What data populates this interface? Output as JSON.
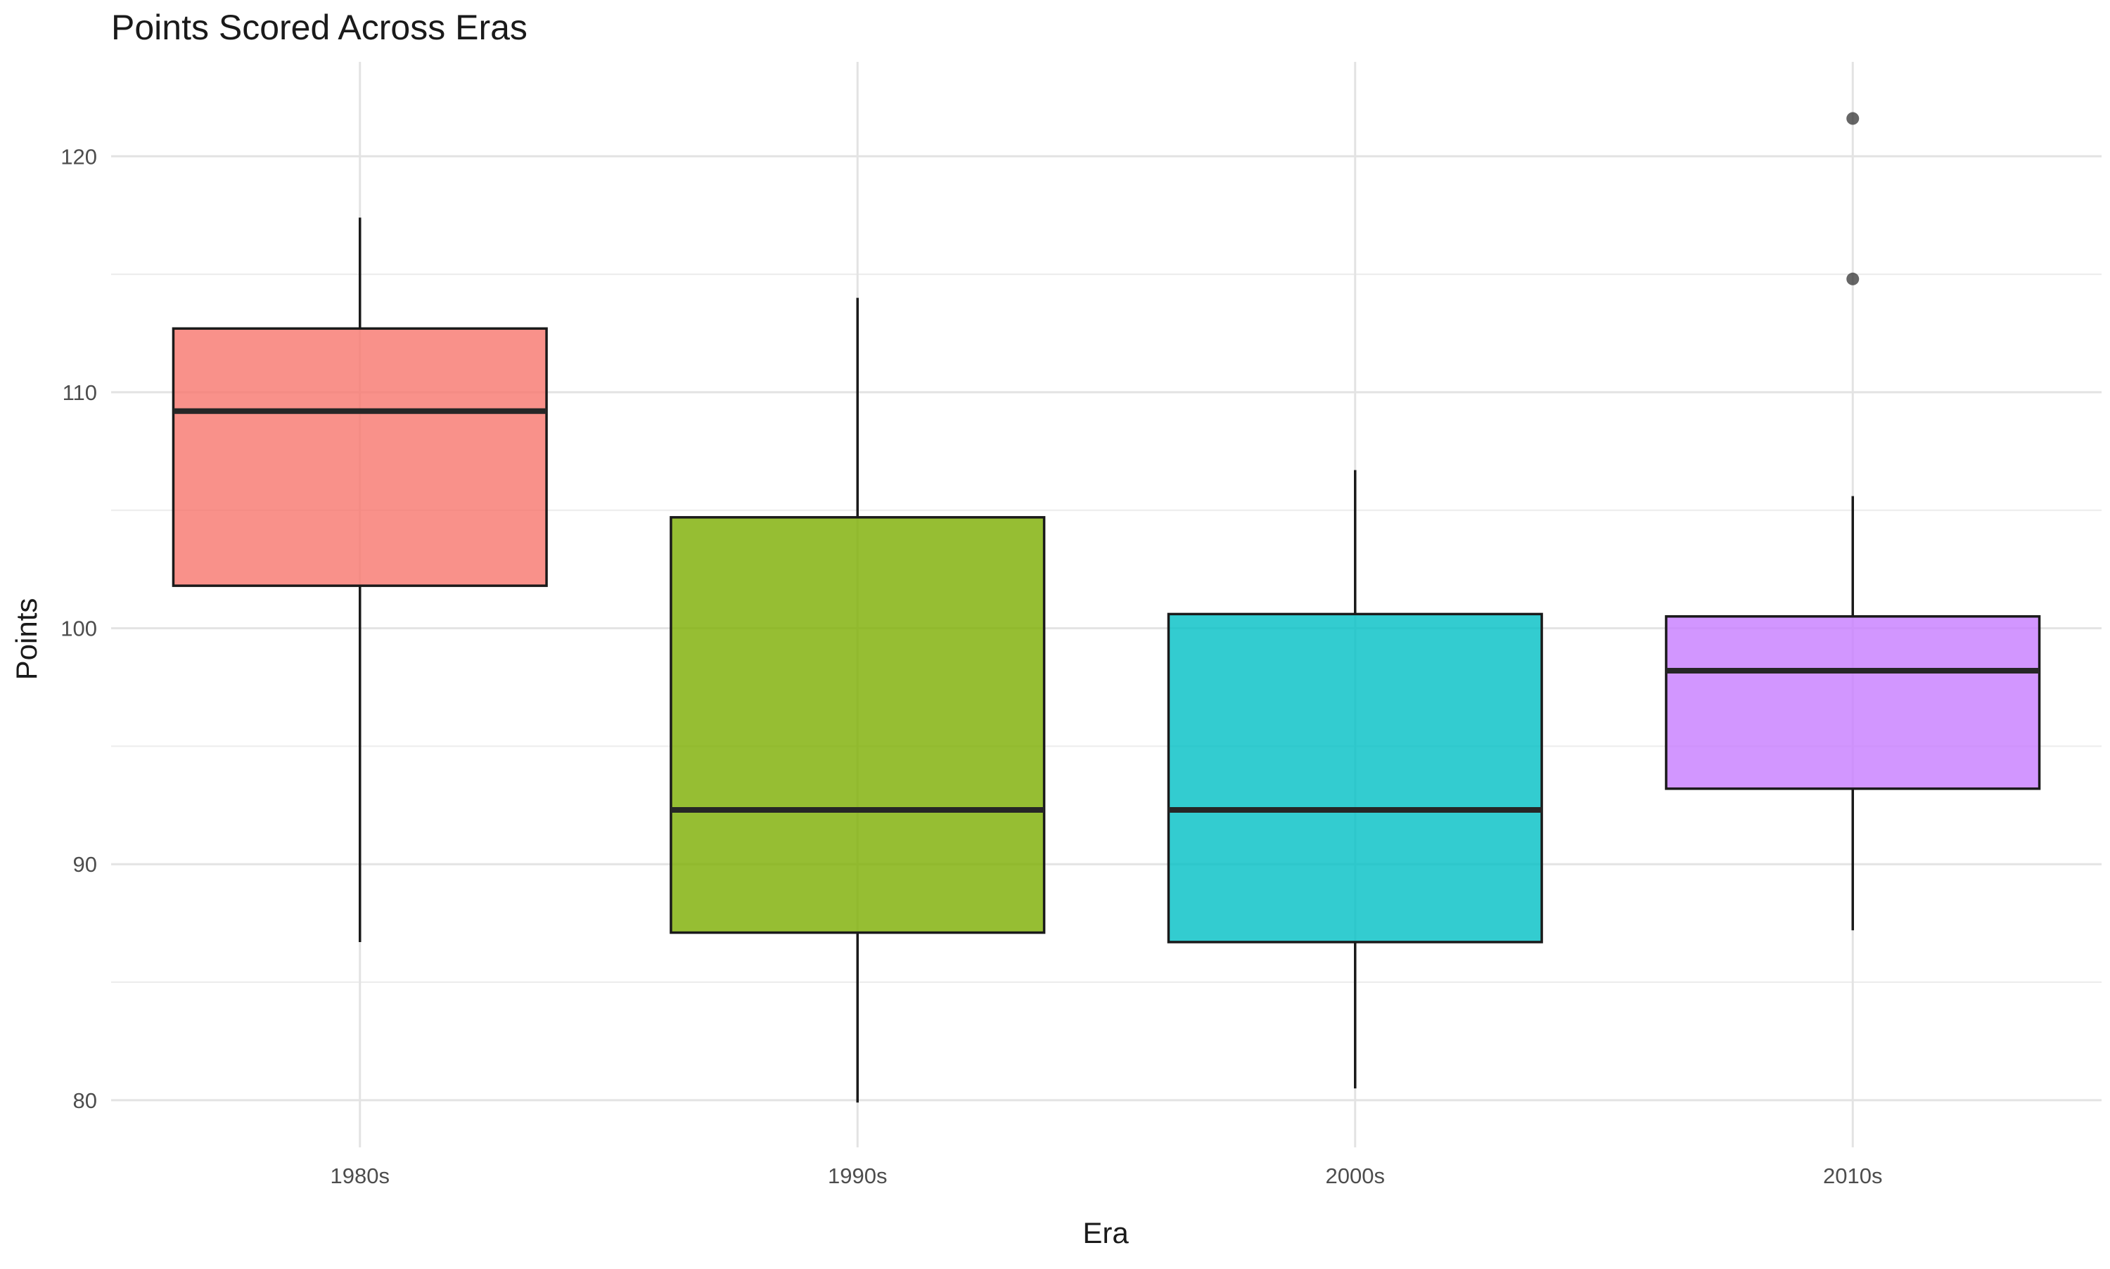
{
  "chart_data": {
    "type": "box",
    "title": "Points Scored Across Eras",
    "xlabel": "Era",
    "ylabel": "Points",
    "categories": [
      "1980s",
      "1990s",
      "2000s",
      "2010s"
    ],
    "ylim": [
      78,
      124
    ],
    "yticks": [
      80,
      90,
      100,
      110,
      120
    ],
    "grid": true,
    "legend": "none",
    "boxes": [
      {
        "category": "1980s",
        "min": 86.7,
        "q1": 101.8,
        "median": 109.2,
        "q3": 112.7,
        "max": 117.4,
        "outliers": [],
        "color": "#F8766D"
      },
      {
        "category": "1990s",
        "min": 79.9,
        "q1": 87.1,
        "median": 92.3,
        "q3": 104.7,
        "max": 114.0,
        "outliers": [],
        "color": "#7CAE00"
      },
      {
        "category": "2000s",
        "min": 80.5,
        "q1": 86.7,
        "median": 92.3,
        "q3": 100.6,
        "max": 106.7,
        "outliers": [],
        "color": "#00BFC4"
      },
      {
        "category": "2010s",
        "min": 87.2,
        "q1": 93.2,
        "median": 98.2,
        "q3": 100.5,
        "max": 105.6,
        "outliers": [
          114.8,
          121.6
        ],
        "color": "#C77CFF"
      }
    ]
  }
}
